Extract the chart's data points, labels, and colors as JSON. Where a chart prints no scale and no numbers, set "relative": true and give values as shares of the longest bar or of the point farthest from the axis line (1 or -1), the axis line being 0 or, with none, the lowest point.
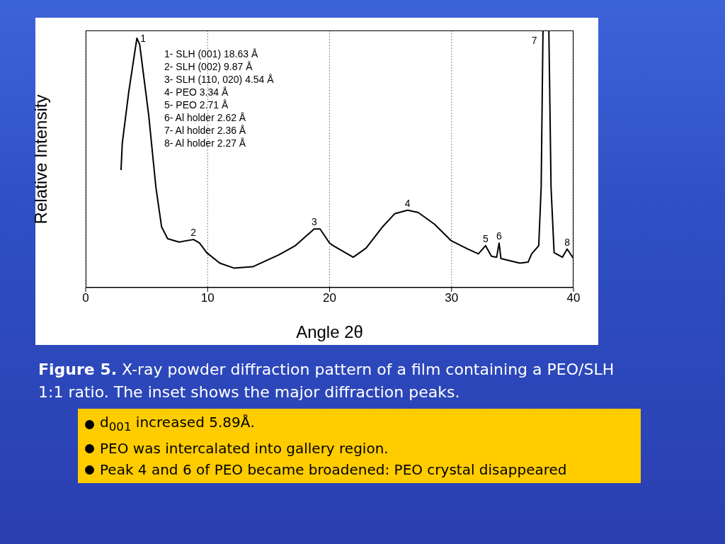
{
  "chart_data": {
    "type": "line",
    "relative": true,
    "xlabel": "Angle 2θ",
    "ylabel": "Relative Intensity",
    "xlim": [
      0,
      40
    ],
    "xticks": [
      0,
      10,
      20,
      30,
      40
    ],
    "grid": "x",
    "marker": "none",
    "line_style": "solid",
    "x": [
      2.9,
      3.0,
      3.53,
      4.2,
      4.43,
      5.17,
      5.76,
      6.22,
      6.72,
      7.67,
      8.84,
      9.34,
      9.92,
      11.0,
      12.15,
      13.7,
      15.83,
      17.19,
      18.74,
      19.22,
      20.0,
      20.3,
      21.94,
      23.0,
      24.36,
      25.33,
      26.4,
      27.27,
      28.62,
      29.98,
      31.34,
      32.2,
      32.79,
      33.27,
      33.7,
      33.9,
      34.05,
      35.6,
      36.28,
      36.57,
      37.15,
      37.35,
      37.5,
      37.98,
      38.16,
      38.41,
      39.09,
      39.48,
      40.0
    ],
    "series": [
      {
        "color": "#000000",
        "values": [
          0.457,
          0.56,
          0.76,
          0.97,
          0.945,
          0.67,
          0.39,
          0.237,
          0.19,
          0.177,
          0.187,
          0.173,
          0.136,
          0.095,
          0.076,
          0.081,
          0.127,
          0.163,
          0.228,
          0.228,
          0.173,
          0.163,
          0.118,
          0.154,
          0.237,
          0.287,
          0.301,
          0.292,
          0.246,
          0.182,
          0.15,
          0.131,
          0.163,
          0.122,
          0.118,
          0.173,
          0.113,
          0.095,
          0.099,
          0.131,
          0.163,
          0.39,
          1.0,
          1.0,
          0.39,
          0.136,
          0.118,
          0.15,
          0.113
        ]
      }
    ],
    "annotations": [
      {
        "text": "1",
        "x": 4.2,
        "y": 0.97
      },
      {
        "text": "2",
        "x": 8.84,
        "y": 0.187
      },
      {
        "text": "3",
        "x": 18.74,
        "y": 0.228
      },
      {
        "text": "4",
        "x": 26.4,
        "y": 0.301
      },
      {
        "text": "5",
        "x": 32.79,
        "y": 0.163
      },
      {
        "text": "6",
        "x": 33.9,
        "y": 0.173
      },
      {
        "text": "7",
        "x": 37.3,
        "y": 0.96
      },
      {
        "text": "8",
        "x": 39.48,
        "y": 0.15
      },
      "1- SLH (001) 18.63 Å",
      "2- SLH (002) 9.87 Å",
      "3- SLH (110, 020) 4.54 Å",
      "4- PEO 3.34 Å",
      "5- PEO 2.71 Å",
      "6- Al holder 2.62 Å",
      "7- Al holder 2.36 Å",
      "8- Al holder 2.27 Å",
      "Figure 5. X-ray powder diffraction pattern of a film containing a PEO/SLH 1:1 ratio. The inset shows the major diffraction peaks.",
      "d$_{001}$ increased 5.89Å.",
      "PEO was intercalated into gallery region.",
      "Peak 4 and 6 of PEO became broadened: PEO crystal disappeared"
    ]
  }
}
